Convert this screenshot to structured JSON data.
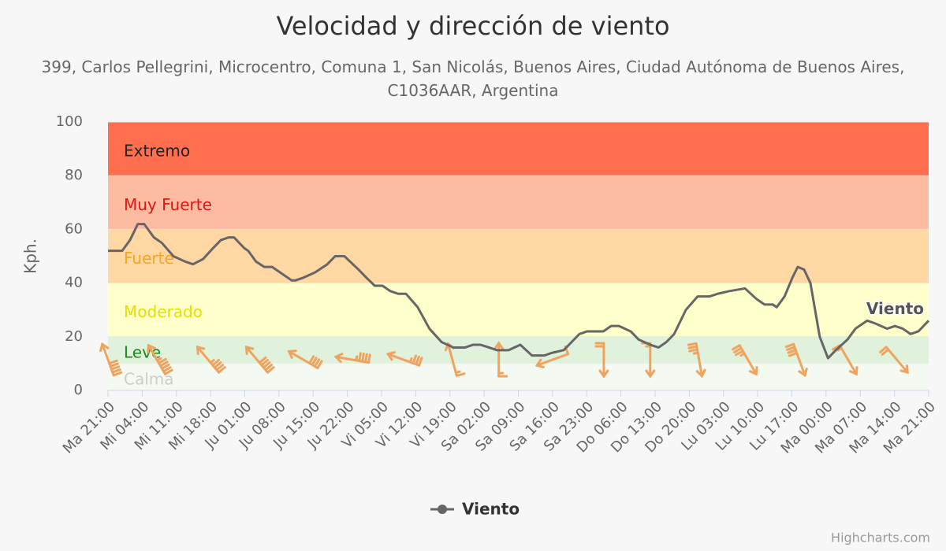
{
  "chart_data": {
    "type": "line",
    "title": "Velocidad y dirección de viento",
    "subtitle": "399, Carlos Pellegrini, Microcentro, Comuna 1, San Nicolás, Buenos Aires, Ciudad Autónoma de Buenos Aires, C1036AAR, Argentina",
    "y_label": "Kph.",
    "ylim": [
      0,
      100
    ],
    "yticks": [
      0,
      20,
      40,
      60,
      80,
      100
    ],
    "xlim": [
      0,
      168
    ],
    "xticks": [
      {
        "value": 0,
        "label": "Ma 21:00"
      },
      {
        "value": 7,
        "label": "Mi 04:00"
      },
      {
        "value": 14,
        "label": "Mi 11:00"
      },
      {
        "value": 21,
        "label": "Mi 18:00"
      },
      {
        "value": 28,
        "label": "Ju 01:00"
      },
      {
        "value": 35,
        "label": "Ju 08:00"
      },
      {
        "value": 42,
        "label": "Ju 15:00"
      },
      {
        "value": 49,
        "label": "Ju 22:00"
      },
      {
        "value": 56,
        "label": "Vi 05:00"
      },
      {
        "value": 63,
        "label": "Vi 12:00"
      },
      {
        "value": 70,
        "label": "Vi 19:00"
      },
      {
        "value": 77,
        "label": "Sa 02:00"
      },
      {
        "value": 84,
        "label": "Sa 09:00"
      },
      {
        "value": 91,
        "label": "Sa 16:00"
      },
      {
        "value": 98,
        "label": "Sa 23:00"
      },
      {
        "value": 105,
        "label": "Do 06:00"
      },
      {
        "value": 112,
        "label": "Do 13:00"
      },
      {
        "value": 119,
        "label": "Do 20:00"
      },
      {
        "value": 126,
        "label": "Lu 03:00"
      },
      {
        "value": 133,
        "label": "Lu 10:00"
      },
      {
        "value": 140,
        "label": "Lu 17:00"
      },
      {
        "value": 147,
        "label": "Ma 00:00"
      },
      {
        "value": 154,
        "label": "Ma 07:00"
      },
      {
        "value": 161,
        "label": "Ma 14:00"
      },
      {
        "value": 168,
        "label": "Ma 21:00"
      }
    ],
    "bands": [
      {
        "label": "Calma",
        "from": 0,
        "to": 10,
        "color": "#f4faf2",
        "label_color": "#cccccc"
      },
      {
        "label": "Leve",
        "from": 10,
        "to": 20,
        "color": "#e0f1dc",
        "label_color": "#1a8a1a"
      },
      {
        "label": "Moderado",
        "from": 20,
        "to": 40,
        "color": "#ffffcc",
        "label_color": "#e3e000"
      },
      {
        "label": "Fuerte",
        "from": 40,
        "to": 60,
        "color": "#fed7a3",
        "label_color": "#f5a623"
      },
      {
        "label": "Muy Fuerte",
        "from": 60,
        "to": 80,
        "color": "#fdbba2",
        "label_color": "#e01515"
      },
      {
        "label": "Extremo",
        "from": 80,
        "to": 100,
        "color": "#ff6e4f",
        "label_color": "#222222"
      }
    ],
    "series": [
      {
        "name": "Viento",
        "color": "#666666",
        "x": [
          0,
          2.9,
          4.5,
          6.1,
          7.4,
          9.4,
          11,
          13.4,
          15.8,
          17.4,
          19.5,
          21.5,
          23.1,
          24.7,
          25.8,
          27.9,
          28.7,
          30.3,
          32,
          33.6,
          36,
          37.6,
          38.4,
          40,
          42.4,
          44.9,
          46.5,
          48.4,
          51.3,
          52.9,
          54.6,
          56.2,
          57.8,
          59.4,
          61,
          63.4,
          65.8,
          68.3,
          70.7,
          73.1,
          74.7,
          76.3,
          78,
          79.6,
          82,
          84.4,
          86.8,
          89.3,
          90.9,
          93.3,
          96.5,
          98.1,
          101.4,
          103,
          104.6,
          107,
          108.6,
          111,
          112.7,
          114.3,
          115.9,
          118.3,
          120.7,
          123.1,
          124.8,
          127.2,
          130.4,
          132.8,
          134.4,
          136.1,
          136.9,
          138.5,
          140.1,
          141.2,
          142.5,
          143.8,
          145.7,
          147.4,
          149,
          151.4,
          153,
          155.4,
          157,
          159.5,
          161.1,
          162.7,
          164.3,
          165.9,
          168
        ],
        "values": [
          52,
          52,
          56,
          62,
          62,
          57,
          55,
          50,
          48,
          47,
          49,
          53,
          56,
          57,
          57,
          53,
          52,
          48,
          46,
          46,
          43,
          41,
          41,
          42,
          44,
          47,
          50,
          50,
          45,
          42,
          39,
          39,
          37,
          36,
          36,
          31,
          23,
          18,
          16,
          16,
          17,
          17,
          16,
          15,
          15,
          17,
          13,
          13,
          14,
          15,
          21,
          22,
          22,
          24,
          24,
          22,
          19,
          17,
          16,
          18,
          21,
          30,
          35,
          35,
          36,
          37,
          38,
          34,
          32,
          32,
          31,
          35,
          42,
          46,
          45,
          40,
          20,
          12,
          15,
          19,
          23,
          26,
          25,
          23,
          24,
          23,
          21,
          22,
          26
        ]
      }
    ],
    "wind": {
      "color": "#f0a35e",
      "x": [
        0,
        10,
        20.5,
        30.5,
        40,
        50,
        60.5,
        70.5,
        80,
        91,
        101.5,
        111,
        121,
        131,
        141.5,
        151.5,
        161.5
      ],
      "speed": [
        52,
        55,
        49,
        52,
        43,
        49,
        36,
        18,
        16,
        14,
        22,
        17,
        35,
        37,
        44,
        17,
        23
      ],
      "direction": [
        340,
        330,
        320,
        320,
        300,
        280,
        290,
        345,
        0,
        250,
        180,
        180,
        170,
        150,
        160,
        150,
        140
      ]
    },
    "credits": "Highcharts.com"
  }
}
